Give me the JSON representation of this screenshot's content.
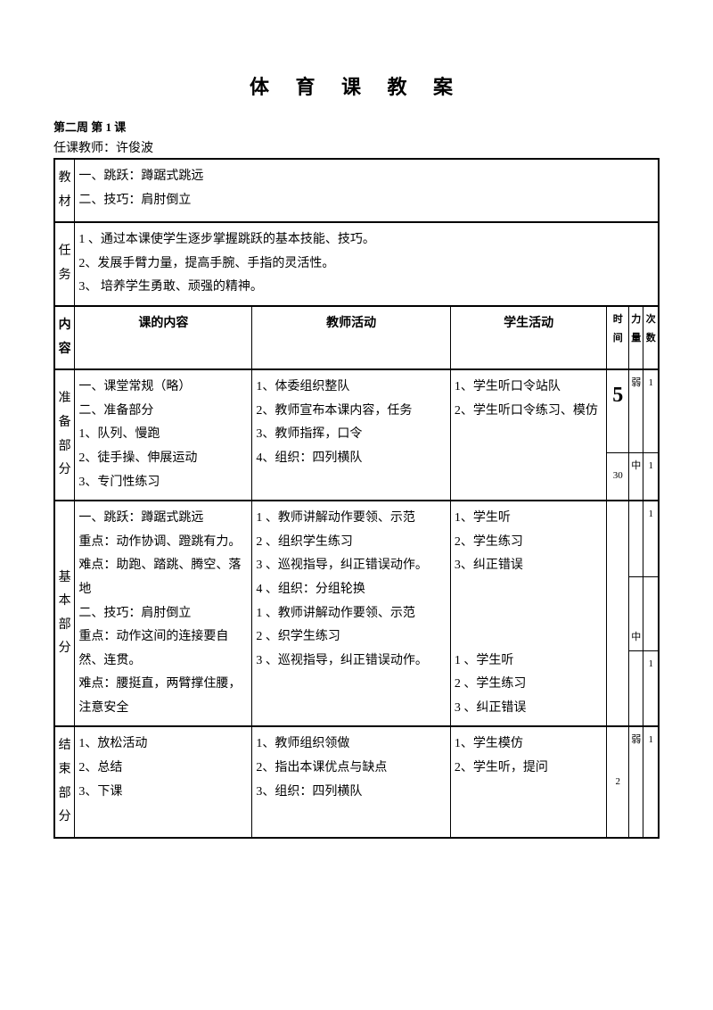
{
  "title": "体 育 课 教 案",
  "subtitle": "第二周  第 1 课",
  "teacher_line": "任课教师：许俊波",
  "material_label": "教材",
  "material_content": "一、跳跃：蹲踞式跳远\n二、技巧：肩肘倒立",
  "task_label": "任务",
  "task_content": "1 、通过本课使学生逐步掌握跳跃的基本技能、技巧。\n2、发展手臂力量，提高手腕、手指的灵活性。\n3、 培养学生勇敢、顽强的精神。",
  "head_inner": "内容",
  "head_content": "课的内容",
  "head_teacher": "教师活动",
  "head_student": "学生活动",
  "head_time": "时间",
  "head_strength": "力量",
  "head_times": "次数",
  "prep_label": "准备部分",
  "prep_content": "一、课堂常规（略）\n二、准备部分\n1、队列、慢跑\n2、徒手操、伸展运动\n3、专门性练习",
  "prep_teacher": "1、体委组织整队\n2、教师宣布本课内容，任务\n3、教师指挥，口令\n4、组织：四列横队",
  "prep_student": "1、学生听口令站队\n2、学生听口令练习、模仿",
  "prep_time1": "5",
  "prep_time2": "30",
  "prep_strength": "弱",
  "prep_strength2": "中",
  "prep_times": "1",
  "prep_times2": "1",
  "basic_label": "基本部分",
  "basic_content": "一、跳跃：蹲踞式跳远\n重点：动作协调、蹬跳有力。\n难点：助跑、踏跳、腾空、落地\n二、技巧：肩肘倒立\n重点：动作这间的连接要自然、连贯。\n难点：腰挺直，两臂撑住腰，注意安全",
  "basic_teacher": "1 、教师讲解动作要领、示范\n2 、组织学生练习\n3 、巡视指导，纠正错误动作。\n4 、组织：分组轮换\n1 、教师讲解动作要领、示范\n2 、织学生练习\n3 、巡视指导，纠正错误动作。",
  "basic_student": "1、学生听\n2、学生练习\n3、纠正错误\n\n\n\n 1 、学生听\n 2 、学生练习\n 3 、纠正错误",
  "basic_strength": "中",
  "basic_times1": "1",
  "basic_times2": "1",
  "end_label": "结束部分",
  "end_content": "1、放松活动\n2、总结\n3、下课",
  "end_teacher": "1、教师组织领做\n2、指出本课优点与缺点\n3、组织：四列横队",
  "end_student": "1、学生模仿\n2、学生听，提问",
  "end_time": "2",
  "end_strength": "弱",
  "end_times": "1"
}
